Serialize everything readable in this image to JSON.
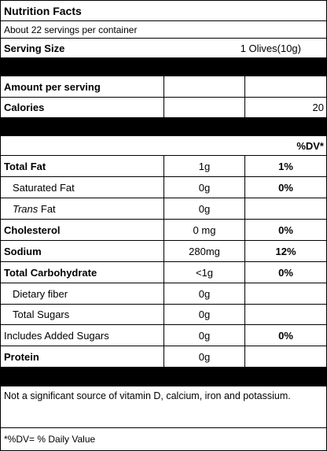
{
  "title": "Nutrition Facts",
  "servings_per_container": "About 22 servings per container",
  "serving_size": {
    "label": "Serving Size",
    "value": "1 Olives(10g)"
  },
  "amount_per_serving": "Amount per serving",
  "calories": {
    "label": "Calories",
    "value": "20"
  },
  "dv_header": "%DV*",
  "nutrients": [
    {
      "label": "Total Fat",
      "amount": "1g",
      "dv": "1%"
    },
    {
      "label": "Saturated Fat",
      "amount": "0g",
      "dv": "0%"
    },
    {
      "label_italic": "Trans",
      "label_rest": " Fat",
      "amount": "0g",
      "dv": ""
    },
    {
      "label": "Cholesterol",
      "amount": "0 mg",
      "dv": "0%"
    },
    {
      "label": "Sodium",
      "amount": "280mg",
      "dv": "12%"
    },
    {
      "label": "Total Carbohydrate",
      "amount": "<1g",
      "dv": "0%"
    },
    {
      "label": "Dietary fiber",
      "amount": "0g",
      "dv": ""
    },
    {
      "label": "Total Sugars",
      "amount": "0g",
      "dv": ""
    },
    {
      "label": "Includes Added Sugars",
      "amount": "0g",
      "dv": "0%"
    },
    {
      "label": "Protein",
      "amount": "0g",
      "dv": ""
    }
  ],
  "footnote": "Not a significant source of vitamin D, calcium, iron and potassium.",
  "dv_note": "*%DV= % Daily Value"
}
